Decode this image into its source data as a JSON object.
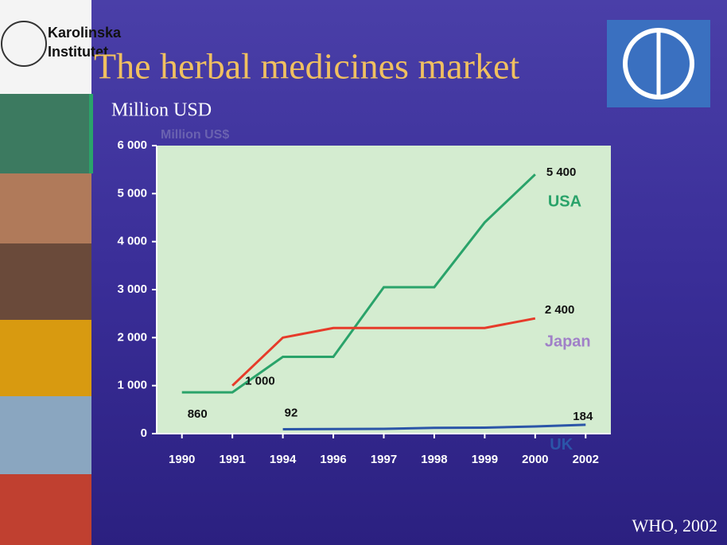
{
  "logo": {
    "lines": [
      "Karolinska",
      "Institutet"
    ]
  },
  "chart_data": {
    "type": "line",
    "title": "The herbal medicines market",
    "y_label": "Million USD",
    "y_label_original": "Million US$",
    "categories": [
      "1990",
      "1991",
      "1994",
      "1996",
      "1997",
      "1998",
      "1999",
      "2000",
      "2002"
    ],
    "series": [
      {
        "name": "USA",
        "color": "#2aa36a",
        "values": [
          860,
          860,
          1600,
          1600,
          3050,
          3050,
          4400,
          5400,
          null
        ],
        "value_labels": [
          "860",
          null,
          null,
          null,
          null,
          null,
          null,
          "5 400",
          null
        ]
      },
      {
        "name": "Japan",
        "color": "#e63b2a",
        "values": [
          null,
          1000,
          2000,
          2200,
          2200,
          2200,
          2200,
          2400,
          null
        ],
        "value_labels": [
          null,
          "1 000",
          null,
          null,
          null,
          null,
          null,
          "2 400",
          null
        ]
      },
      {
        "name": "UK",
        "color": "#2b55a8",
        "values": [
          null,
          null,
          92,
          95,
          100,
          120,
          125,
          150,
          184
        ],
        "value_labels": [
          null,
          null,
          "92",
          null,
          null,
          null,
          null,
          null,
          "184"
        ]
      }
    ],
    "ylim": [
      0,
      6000
    ],
    "yticks": [
      0,
      {
        "value": 1000,
        "label": "1 000"
      },
      {
        "value": 2000,
        "label": "2 000"
      },
      {
        "value": 3000,
        "label": "3 000"
      },
      {
        "value": 4000,
        "label": "4 000"
      },
      {
        "value": 5000,
        "label": "5 000"
      },
      {
        "value": 6000,
        "label": "6 000"
      }
    ],
    "grid": false
  },
  "source": "WHO, 2002"
}
